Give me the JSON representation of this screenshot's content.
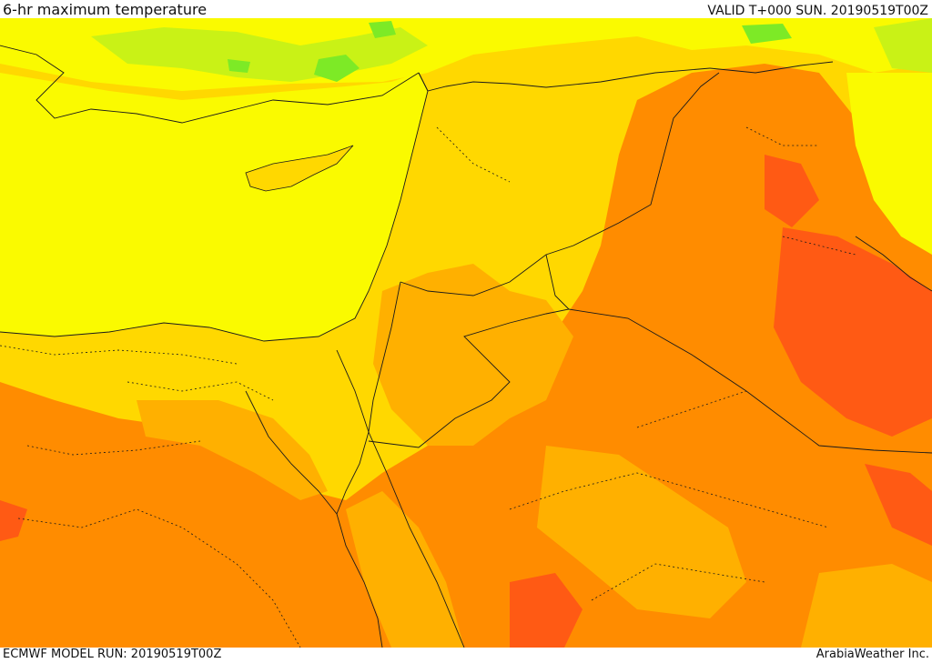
{
  "header": {
    "title": "6-hr maximum temperature",
    "valid": "VALID T+000 SUN. 20190519T00Z"
  },
  "footer": {
    "model_run": "ECMWF MODEL RUN: 20190519T00Z",
    "credit": "ArabiaWeather Inc."
  },
  "palette": {
    "band_green": "#7dea26",
    "band_lime": "#c9f216",
    "band_yellow": "#fafa00",
    "band_gold": "#ffd800",
    "band_amber": "#ffb000",
    "band_orange": "#ff8c00",
    "band_red_orange": "#ff5a14",
    "borders": "#1a1a1a"
  }
}
